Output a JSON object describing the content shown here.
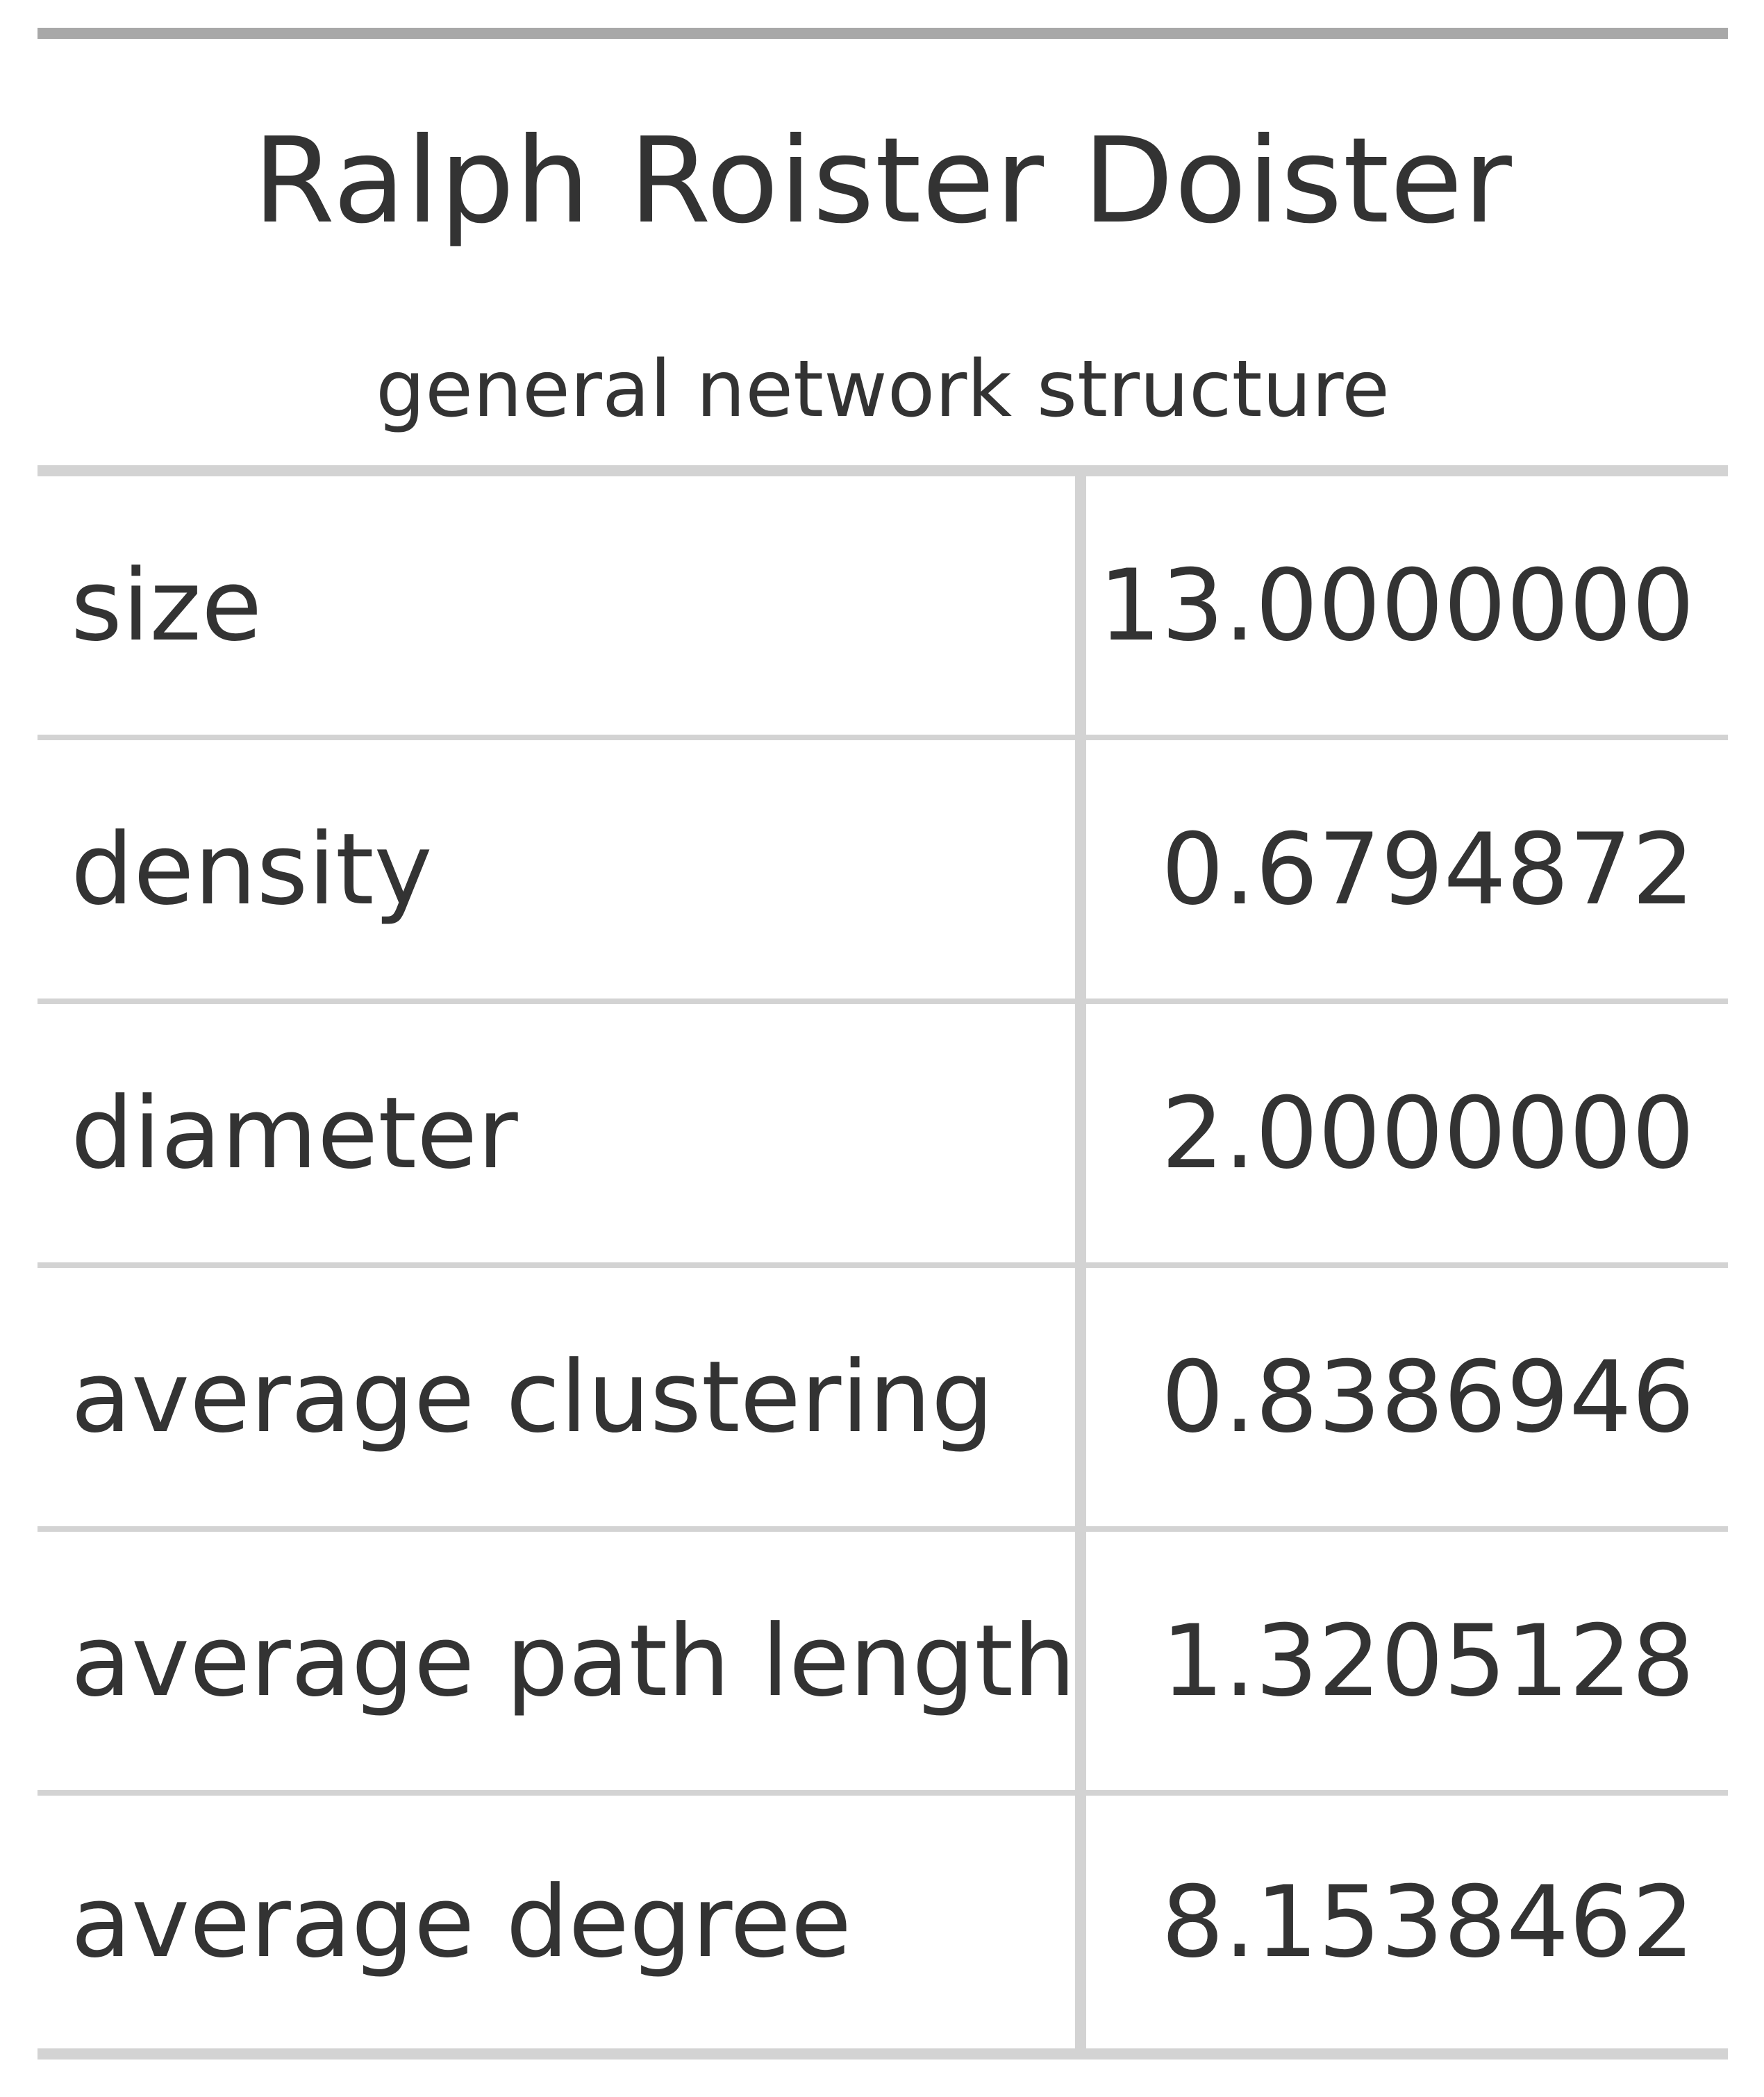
{
  "table": {
    "title": "Ralph Roister Doister",
    "subtitle": "general network structure",
    "rows": [
      {
        "label": "size",
        "value": "13.0000000"
      },
      {
        "label": "density",
        "value": "0.6794872"
      },
      {
        "label": "diameter",
        "value": "2.0000000"
      },
      {
        "label": "average clustering",
        "value": "0.8386946"
      },
      {
        "label": "average path length",
        "value": "1.3205128"
      },
      {
        "label": "average degree",
        "value": "8.1538462"
      }
    ]
  },
  "colors": {
    "text": "#333333",
    "top_rule": "#a8a8a8",
    "rule": "#d3d3d3",
    "background": "#ffffff"
  }
}
